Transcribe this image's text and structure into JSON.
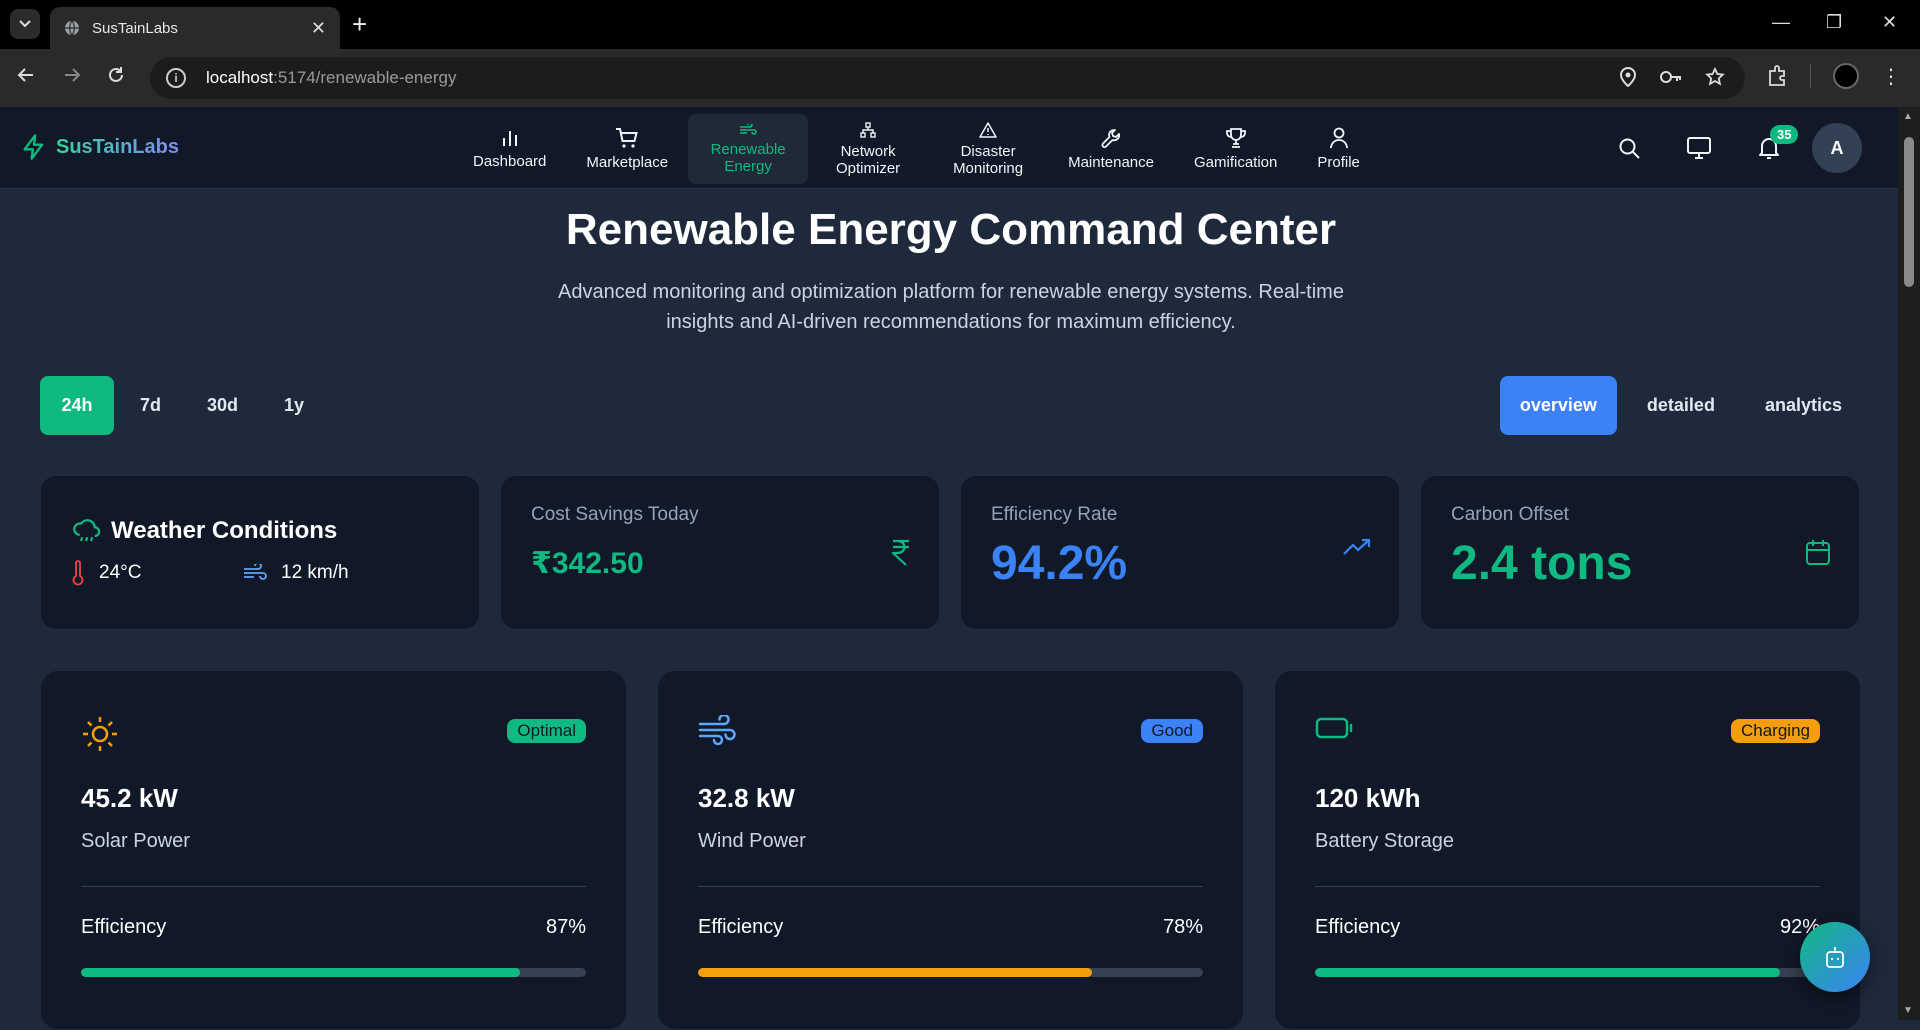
{
  "browser": {
    "tab_title": "SusTainLabs",
    "url_host": "localhost",
    "url_path": ":5174/renewable-energy"
  },
  "app": {
    "brand": "SusTainLabs",
    "nav": [
      {
        "label": "Dashboard",
        "icon": "bar-chart-icon"
      },
      {
        "label": "Marketplace",
        "icon": "cart-icon"
      },
      {
        "label": "Renewable Energy",
        "icon": "wind-icon",
        "active": true
      },
      {
        "label": "Network Optimizer",
        "icon": "network-icon"
      },
      {
        "label": "Disaster Monitoring",
        "icon": "alert-triangle-icon"
      },
      {
        "label": "Maintenance",
        "icon": "wrench-icon"
      },
      {
        "label": "Gamification",
        "icon": "trophy-icon"
      },
      {
        "label": "Profile",
        "icon": "user-icon"
      }
    ],
    "notification_count": "35",
    "avatar_initial": "A"
  },
  "page": {
    "title": "Renewable Energy Command Center",
    "subtitle": "Advanced monitoring and optimization platform for renewable energy systems. Real-time insights and AI-driven recommendations for maximum efficiency."
  },
  "time_ranges": [
    "24h",
    "7d",
    "30d",
    "1y"
  ],
  "active_range": "24h",
  "views": [
    "overview",
    "detailed",
    "analytics"
  ],
  "active_view": "overview",
  "weather": {
    "title": "Weather Conditions",
    "temperature": "24°C",
    "wind": "12 km/h"
  },
  "stats": {
    "cost": {
      "label": "Cost Savings Today",
      "value": "₹342.50",
      "color": "#10b981"
    },
    "efficiency": {
      "label": "Efficiency Rate",
      "value": "94.2%",
      "color": "#3b82f6"
    },
    "carbon": {
      "label": "Carbon Offset",
      "value": "2.4 tons",
      "color": "#10b981"
    }
  },
  "energy": [
    {
      "value": "45.2 kW",
      "label": "Solar Power",
      "badge": "Optimal",
      "badge_color": "#10b981",
      "eff_label": "Efficiency",
      "eff_text": "87%",
      "eff": 0.87,
      "bar_color": "#10b981",
      "icon": "sun-icon"
    },
    {
      "value": "32.8 kW",
      "label": "Wind Power",
      "badge": "Good",
      "badge_color": "#3b82f6",
      "eff_label": "Efficiency",
      "eff_text": "78%",
      "eff": 0.78,
      "bar_color": "#f59e0b",
      "icon": "wind-icon"
    },
    {
      "value": "120 kWh",
      "label": "Battery Storage",
      "badge": "Charging",
      "badge_color": "#f59e0b",
      "eff_label": "Efficiency",
      "eff_text": "92%",
      "eff": 0.92,
      "bar_color": "#10b981",
      "icon": "battery-icon"
    }
  ]
}
